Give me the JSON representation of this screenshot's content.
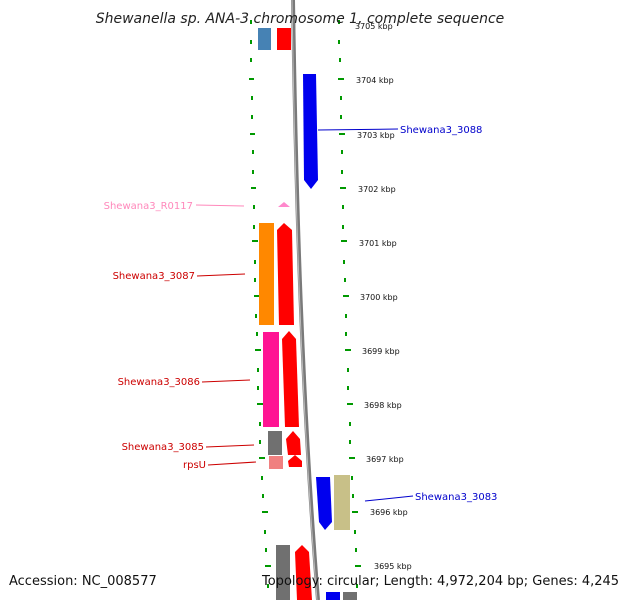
{
  "title": "Shewanella sp. ANA-3 chromosome 1, complete sequence",
  "footer": {
    "accession": "Accession: NC_008577",
    "topology": "Topology: circular; Length: 4,972,204 bp; Genes: 4,245"
  },
  "scale": {
    "unit": "kbp",
    "ticks": [
      {
        "label": "3705 kbp"
      },
      {
        "label": "3704 kbp"
      },
      {
        "label": "3703 kbp"
      },
      {
        "label": "3702 kbp"
      },
      {
        "label": "3701 kbp"
      },
      {
        "label": "3700 kbp"
      },
      {
        "label": "3699 kbp"
      },
      {
        "label": "3698 kbp"
      },
      {
        "label": "3697 kbp"
      },
      {
        "label": "3696 kbp"
      },
      {
        "label": "3695 kbp"
      }
    ]
  },
  "genes": [
    {
      "name": "Shewana3_3088",
      "strand": "reverse",
      "color": "#0000ee",
      "label_color": "#0000cc"
    },
    {
      "name": "Shewana3_R0117",
      "strand": "forward",
      "color": "#ff88cc",
      "label_color": "#ff88bb"
    },
    {
      "name": "Shewana3_3087",
      "strand": "forward",
      "color": "#ff0000",
      "label_color": "#cc0000"
    },
    {
      "name": "Shewana3_3086",
      "strand": "forward",
      "color": "#ff0000",
      "label_color": "#cc0000"
    },
    {
      "name": "Shewana3_3085",
      "strand": "forward",
      "color": "#ff0000",
      "label_color": "#cc0000"
    },
    {
      "name": "rpsU",
      "strand": "forward",
      "color": "#ff0000",
      "label_color": "#cc0000"
    },
    {
      "name": "Shewana3_3083",
      "strand": "reverse",
      "color": "#0000ee",
      "label_color": "#0000cc"
    }
  ],
  "colors": {
    "forward": "#ff0000",
    "reverse": "#0000ee",
    "backbone": "#888888",
    "gc_ticks": "#009900",
    "cog_orange": "#ff8800",
    "cog_magenta": "#ff1493",
    "cog_grey": "#707070",
    "cog_pink": "#f08080",
    "cog_khaki": "#c8c088",
    "cog_steelblue": "#4682b4"
  }
}
